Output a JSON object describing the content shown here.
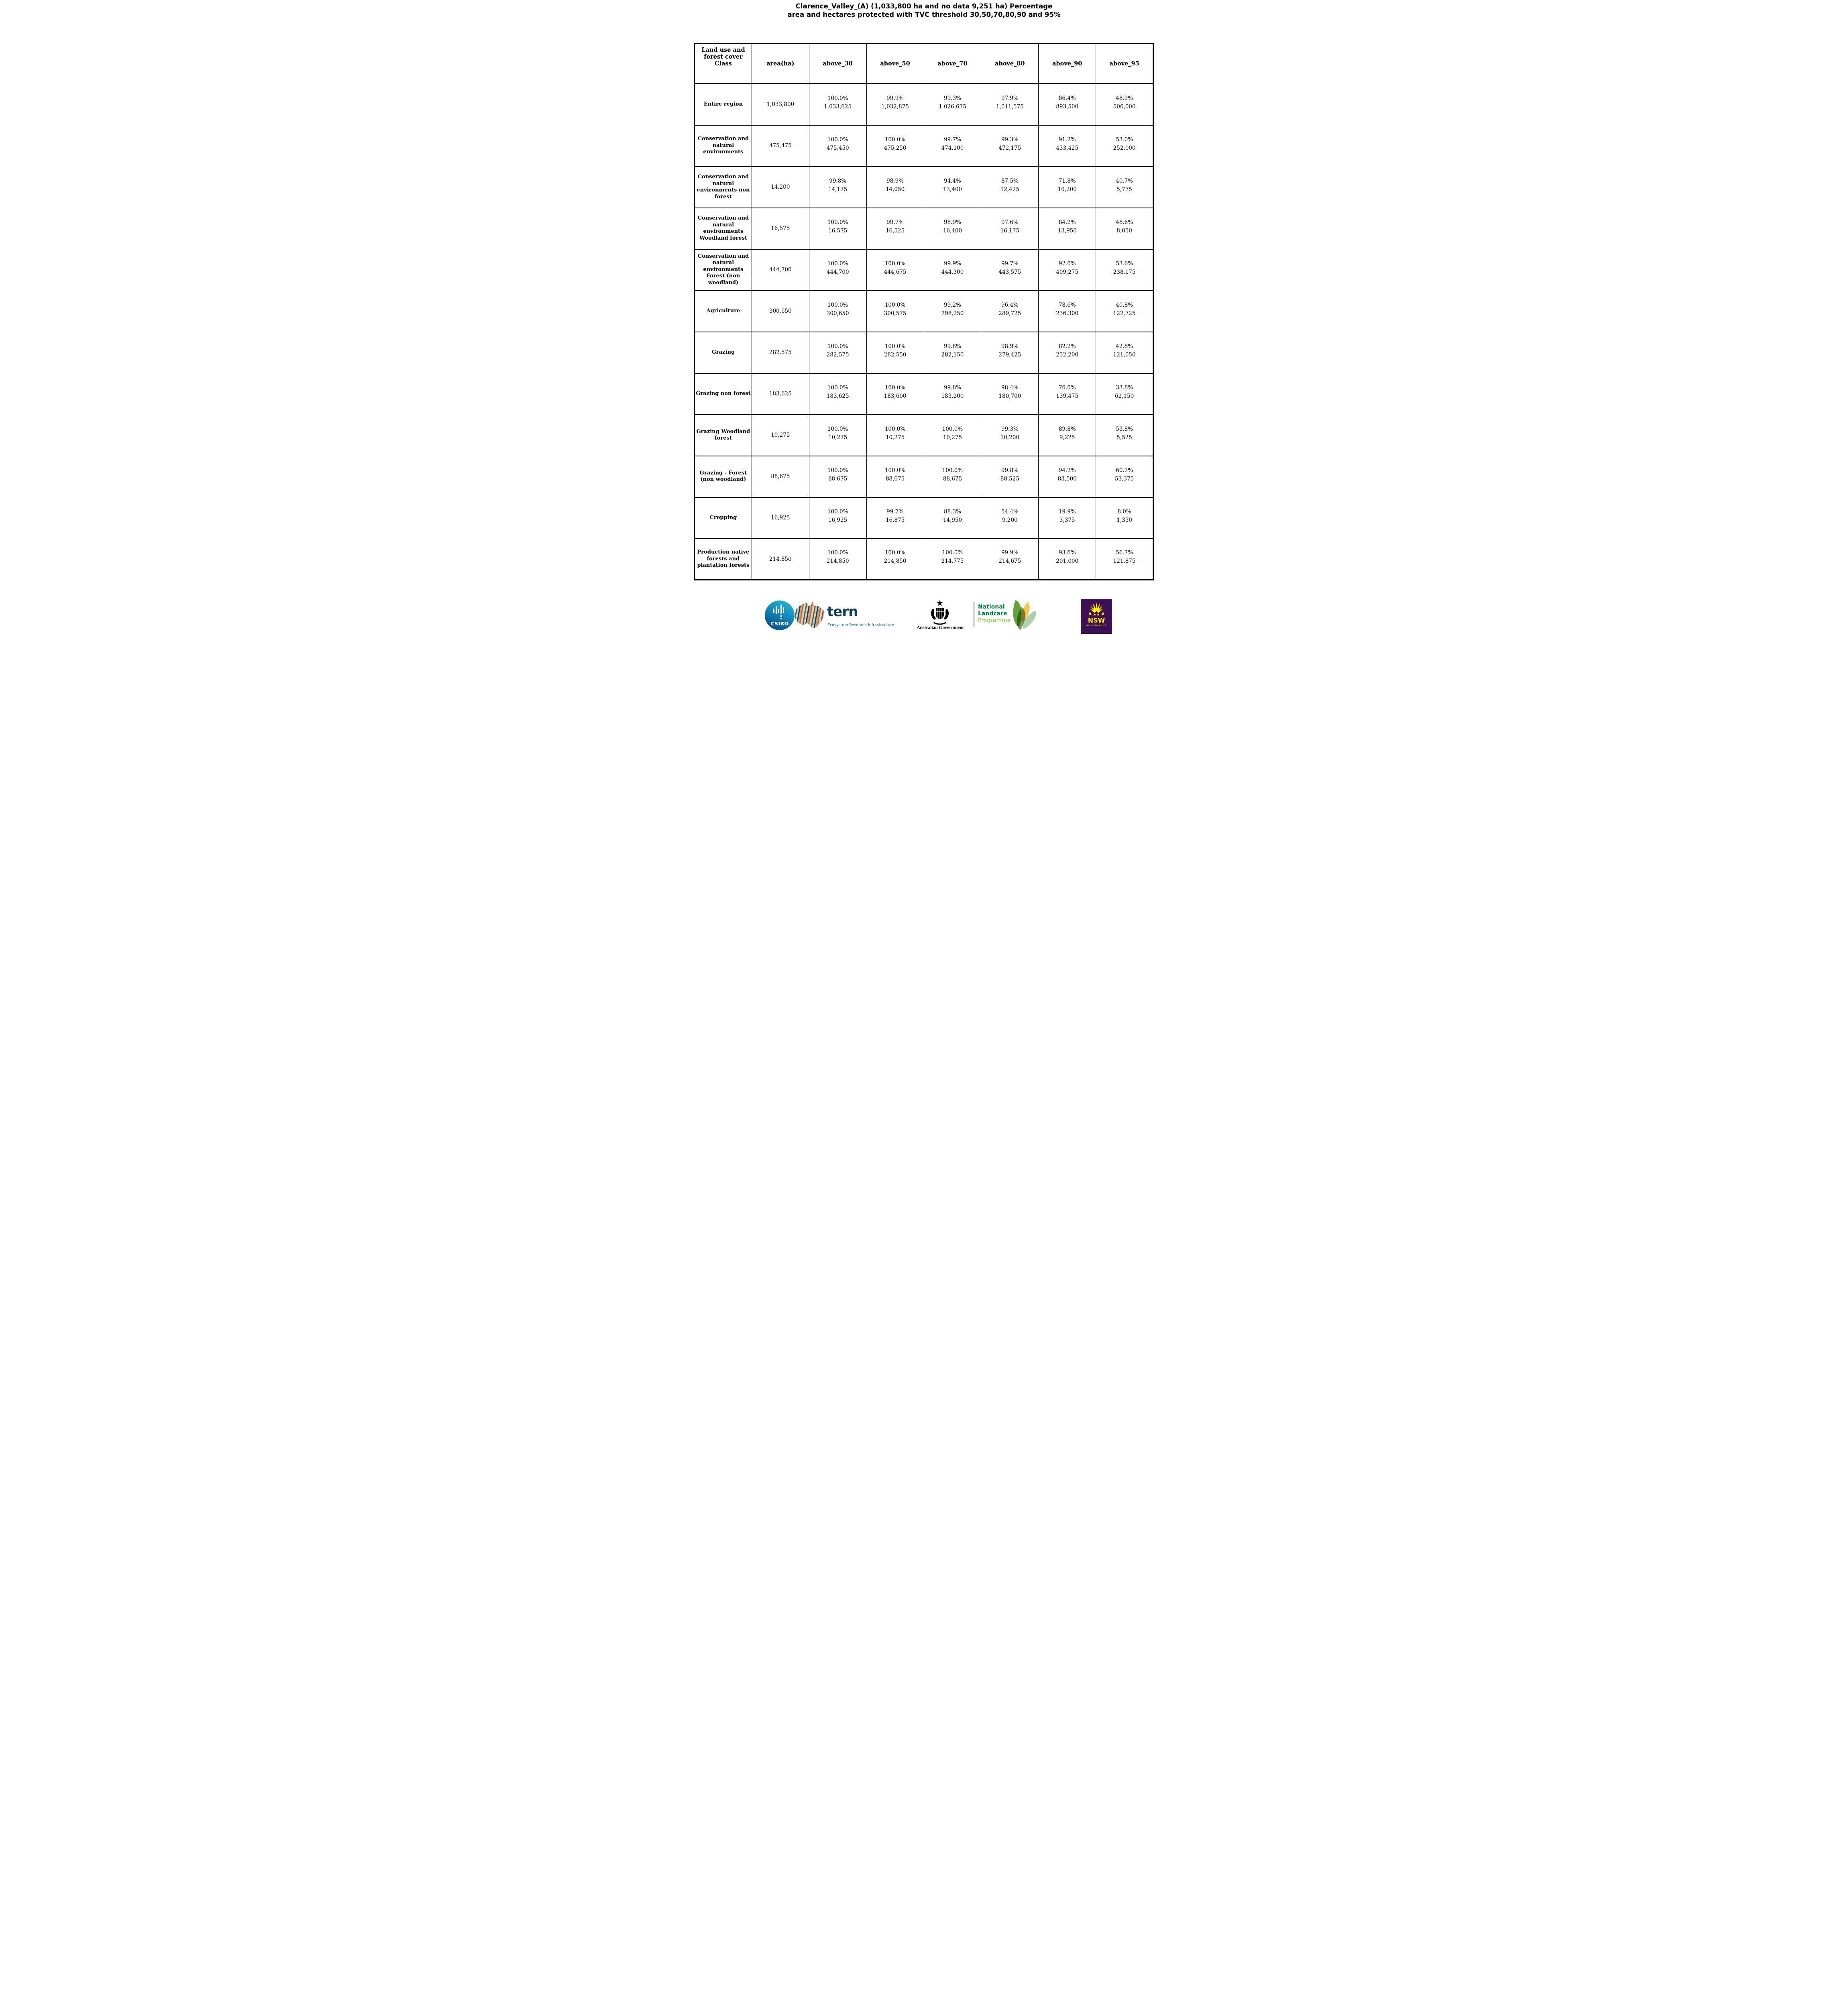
{
  "title": {
    "line1": "Clarence_Valley_(A) (1,033,800 ha and no data 9,251 ha) Percentage",
    "line2": "area and hectares protected with TVC threshold 30,50,70,80,90 and 95%"
  },
  "table": {
    "columns": [
      "Land use and forest cover Class",
      "area(ha)",
      "above_30",
      "above_50",
      "above_70",
      "above_80",
      "above_90",
      "above_95"
    ],
    "rows": [
      {
        "label": "Entire region",
        "area": "1,033,800",
        "cells": [
          [
            "100.0%",
            "1,033,625"
          ],
          [
            "99.9%",
            "1,032,875"
          ],
          [
            "99.3%",
            "1,026,675"
          ],
          [
            "97.9%",
            "1,011,575"
          ],
          [
            "86.4%",
            "893,500"
          ],
          [
            "48.9%",
            "506,000"
          ]
        ]
      },
      {
        "label": "Conservation and natural environments",
        "area": "475,475",
        "cells": [
          [
            "100.0%",
            "475,450"
          ],
          [
            "100.0%",
            "475,250"
          ],
          [
            "99.7%",
            "474,100"
          ],
          [
            "99.3%",
            "472,175"
          ],
          [
            "91.2%",
            "433,425"
          ],
          [
            "53.0%",
            "252,000"
          ]
        ]
      },
      {
        "label": "Conservation and natural environments non forest",
        "area": "14,200",
        "cells": [
          [
            "99.8%",
            "14,175"
          ],
          [
            "98.9%",
            "14,050"
          ],
          [
            "94.4%",
            "13,400"
          ],
          [
            "87.5%",
            "12,425"
          ],
          [
            "71.8%",
            "10,200"
          ],
          [
            "40.7%",
            "5,775"
          ]
        ]
      },
      {
        "label": "Conservation and natural environments Woodland forest",
        "area": "16,575",
        "cells": [
          [
            "100.0%",
            "16,575"
          ],
          [
            "99.7%",
            "16,525"
          ],
          [
            "98.9%",
            "16,400"
          ],
          [
            "97.6%",
            "16,175"
          ],
          [
            "84.2%",
            "13,950"
          ],
          [
            "48.6%",
            "8,050"
          ]
        ]
      },
      {
        "label": "Conservation and natural environments Forest (non woodland)",
        "area": "444,700",
        "cells": [
          [
            "100.0%",
            "444,700"
          ],
          [
            "100.0%",
            "444,675"
          ],
          [
            "99.9%",
            "444,300"
          ],
          [
            "99.7%",
            "443,575"
          ],
          [
            "92.0%",
            "409,275"
          ],
          [
            "53.6%",
            "238,175"
          ]
        ]
      },
      {
        "label": "Agriculture",
        "area": "300,650",
        "cells": [
          [
            "100.0%",
            "300,650"
          ],
          [
            "100.0%",
            "300,575"
          ],
          [
            "99.2%",
            "298,250"
          ],
          [
            "96.4%",
            "289,725"
          ],
          [
            "78.6%",
            "236,300"
          ],
          [
            "40.8%",
            "122,725"
          ]
        ]
      },
      {
        "label": "Grazing",
        "area": "282,575",
        "cells": [
          [
            "100.0%",
            "282,575"
          ],
          [
            "100.0%",
            "282,550"
          ],
          [
            "99.8%",
            "282,150"
          ],
          [
            "98.9%",
            "279,425"
          ],
          [
            "82.2%",
            "232,200"
          ],
          [
            "42.8%",
            "121,050"
          ]
        ]
      },
      {
        "label": "Grazing non forest",
        "area": "183,625",
        "cells": [
          [
            "100.0%",
            "183,625"
          ],
          [
            "100.0%",
            "183,600"
          ],
          [
            "99.8%",
            "183,200"
          ],
          [
            "98.4%",
            "180,700"
          ],
          [
            "76.0%",
            "139,475"
          ],
          [
            "33.8%",
            "62,150"
          ]
        ]
      },
      {
        "label": "Grazing Woodland forest",
        "area": "10,275",
        "cells": [
          [
            "100.0%",
            "10,275"
          ],
          [
            "100.0%",
            "10,275"
          ],
          [
            "100.0%",
            "10,275"
          ],
          [
            "99.3%",
            "10,200"
          ],
          [
            "89.8%",
            "9,225"
          ],
          [
            "53.8%",
            "5,525"
          ]
        ]
      },
      {
        "label": "Grazing - Forest (non woodland)",
        "area": "88,675",
        "cells": [
          [
            "100.0%",
            "88,675"
          ],
          [
            "100.0%",
            "88,675"
          ],
          [
            "100.0%",
            "88,675"
          ],
          [
            "99.8%",
            "88,525"
          ],
          [
            "94.2%",
            "83,500"
          ],
          [
            "60.2%",
            "53,375"
          ]
        ]
      },
      {
        "label": "Cropping",
        "area": "16,925",
        "cells": [
          [
            "100.0%",
            "16,925"
          ],
          [
            "99.7%",
            "16,875"
          ],
          [
            "88.3%",
            "14,950"
          ],
          [
            "54.4%",
            "9,200"
          ],
          [
            "19.9%",
            "3,375"
          ],
          [
            "8.0%",
            "1,350"
          ]
        ]
      },
      {
        "label": "Production native forests and plantation forests",
        "area": "214,850",
        "cells": [
          [
            "100.0%",
            "214,850"
          ],
          [
            "100.0%",
            "214,850"
          ],
          [
            "100.0%",
            "214,775"
          ],
          [
            "99.9%",
            "214,675"
          ],
          [
            "93.6%",
            "201,000"
          ],
          [
            "56.7%",
            "121,875"
          ]
        ]
      }
    ]
  },
  "footer": {
    "csiro_label": "CSIRO",
    "tern_name": "tern",
    "tern_subtitle": "Ecosystem Research Infrastructure",
    "aus_gov": "Australian Government",
    "landcare_line1": "National",
    "landcare_line2": "Landcare",
    "landcare_line3": "Programme",
    "nsw_name": "NSW",
    "nsw_sub": "GOVERNMENT"
  },
  "colors": {
    "text": "#000000",
    "csiro_teal": "#1590bd",
    "tern_dark": "#133d54",
    "tern_teal": "#1e6d84",
    "landcare_green": "#00843d",
    "landcare_light_green": "#7dc242",
    "nsw_purple": "#3c1053",
    "nsw_yellow": "#ffe600"
  }
}
